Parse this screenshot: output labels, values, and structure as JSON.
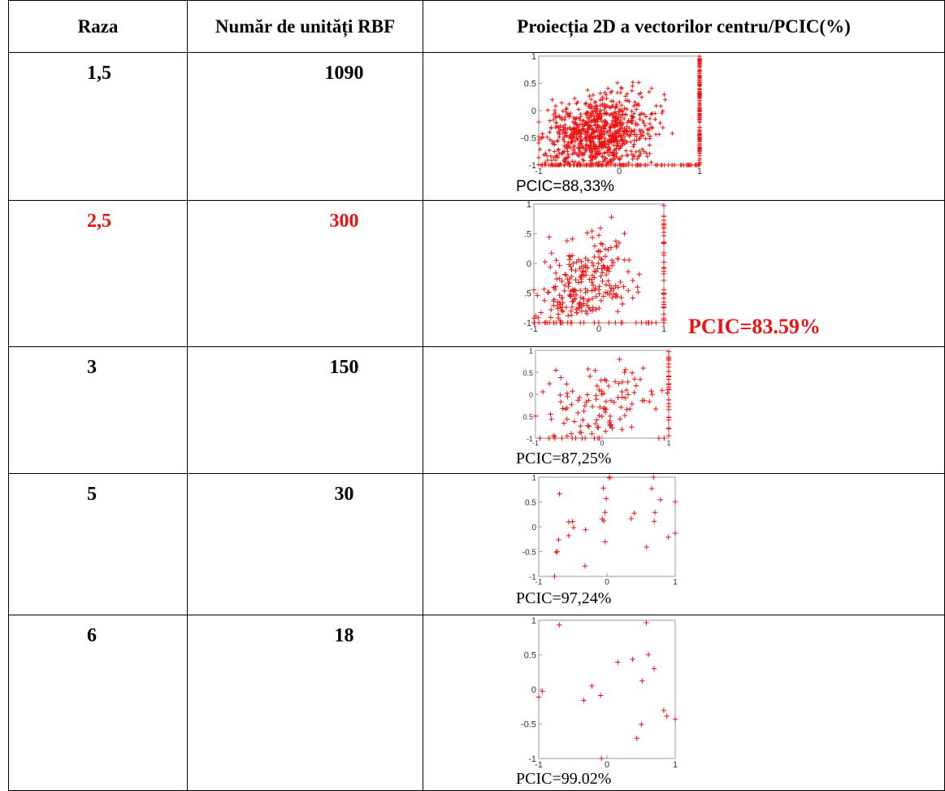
{
  "table": {
    "headers": [
      "Raza",
      "Număr de unități RBF",
      "Proiecția 2D a vectorilor centru/PCIC(%)"
    ],
    "rows": [
      {
        "raza": "1,5",
        "units": "1090",
        "pcic": "PCIC=88,33%",
        "highlight": false
      },
      {
        "raza": "2,5",
        "units": "300",
        "pcic": "PCIC=83.59%",
        "highlight": true
      },
      {
        "raza": "3",
        "units": "150",
        "pcic": "PCIC=87,25%",
        "highlight": false
      },
      {
        "raza": "5",
        "units": "30",
        "pcic": "PCIC=97,24%",
        "highlight": false
      },
      {
        "raza": "6",
        "units": "18",
        "pcic": "PCIC=99.02%",
        "highlight": false
      }
    ]
  },
  "colors": {
    "marker": "#ee1111",
    "highlight_text": "#ee1111",
    "border": "#000000"
  },
  "plots": [
    {
      "y_ticks": [
        "1",
        "0.5",
        "0",
        "-0.5",
        "-1"
      ],
      "x_ticks": [
        "-1",
        "0",
        "1"
      ],
      "point_count": 1090
    },
    {
      "y_ticks": [
        "1",
        ".5",
        "0",
        ".5",
        "-1"
      ],
      "x_ticks": [
        "-1",
        "0",
        "1"
      ],
      "point_count": 300
    },
    {
      "y_ticks": [
        "1",
        "0.5",
        "0",
        "0.5",
        "-1"
      ],
      "x_ticks": [
        "-1",
        "0",
        "1"
      ],
      "point_count": 150
    },
    {
      "y_ticks": [
        "1",
        "0.5",
        "0",
        "-0.5",
        "-1"
      ],
      "x_ticks": [
        "-1",
        "0",
        "1"
      ],
      "point_count": 30
    },
    {
      "y_ticks": [
        "1",
        "0.5",
        "0",
        "-0.5",
        "-1"
      ],
      "x_ticks": [
        "-1",
        "0",
        "1"
      ],
      "point_count": 18
    }
  ]
}
